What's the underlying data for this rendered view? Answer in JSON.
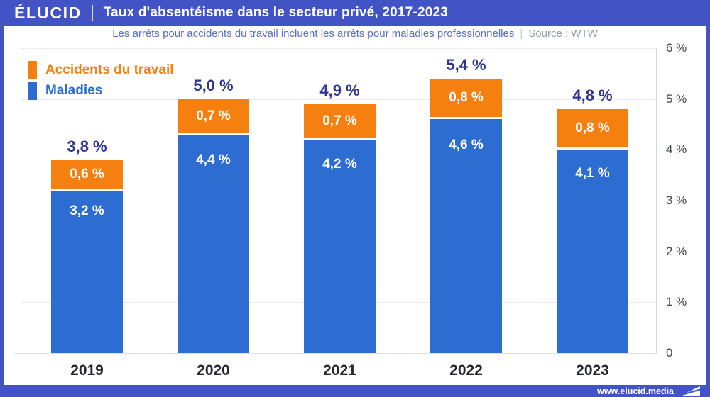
{
  "header": {
    "logo": "ÉLUCID",
    "title": "Taux d'absentéisme dans le secteur privé, 2017-2023"
  },
  "subtitle": {
    "text": "Les arrêts pour accidents du travail incluent les arrêts pour maladies professionnelles",
    "separator": "|",
    "source": "Source : WTW"
  },
  "footer": {
    "url": "www.elucid.media"
  },
  "colors": {
    "accent_blue": "#4254c5",
    "bar_blue": "#2d6cd0",
    "bar_orange": "#f5800f",
    "total_label_navy": "#2f3490",
    "subtitle_blue": "#5b6ec8",
    "source_gray": "#979ca6",
    "gridline_gray": "#e9ebef"
  },
  "chart_data": {
    "type": "bar",
    "stacked": true,
    "title": "Taux d'absentéisme dans le secteur privé, 2017-2023",
    "categories": [
      "2019",
      "2020",
      "2021",
      "2022",
      "2023"
    ],
    "series": [
      {
        "name": "Accidents du travail",
        "color": "#f5800f",
        "values": [
          0.6,
          0.7,
          0.7,
          0.8,
          0.8
        ],
        "labels": [
          "0,6 %",
          "0,7 %",
          "0,7 %",
          "0,8 %",
          "0,8 %"
        ]
      },
      {
        "name": "Maladies",
        "color": "#2d6cd0",
        "values": [
          3.2,
          4.4,
          4.2,
          4.6,
          4.1
        ],
        "labels": [
          "3,2 %",
          "4,4 %",
          "4,2 %",
          "4,6 %",
          "4,1 %"
        ]
      }
    ],
    "totals": [
      3.8,
      5.0,
      4.9,
      5.4,
      4.8
    ],
    "total_labels": [
      "3,8 %",
      "5,0 %",
      "4,9 %",
      "5,4 %",
      "4,8 %"
    ],
    "y_ticks": [
      "6 %",
      "5 %",
      "4 %",
      "3 %",
      "2 %",
      "1 %",
      "0"
    ],
    "ylim": [
      0,
      6
    ],
    "xlabel": "",
    "ylabel": "",
    "legend": [
      "Accidents du travail",
      "Maladies"
    ],
    "legend_position": "top-left",
    "grid": "horizontal",
    "y_axis_side": "right"
  }
}
